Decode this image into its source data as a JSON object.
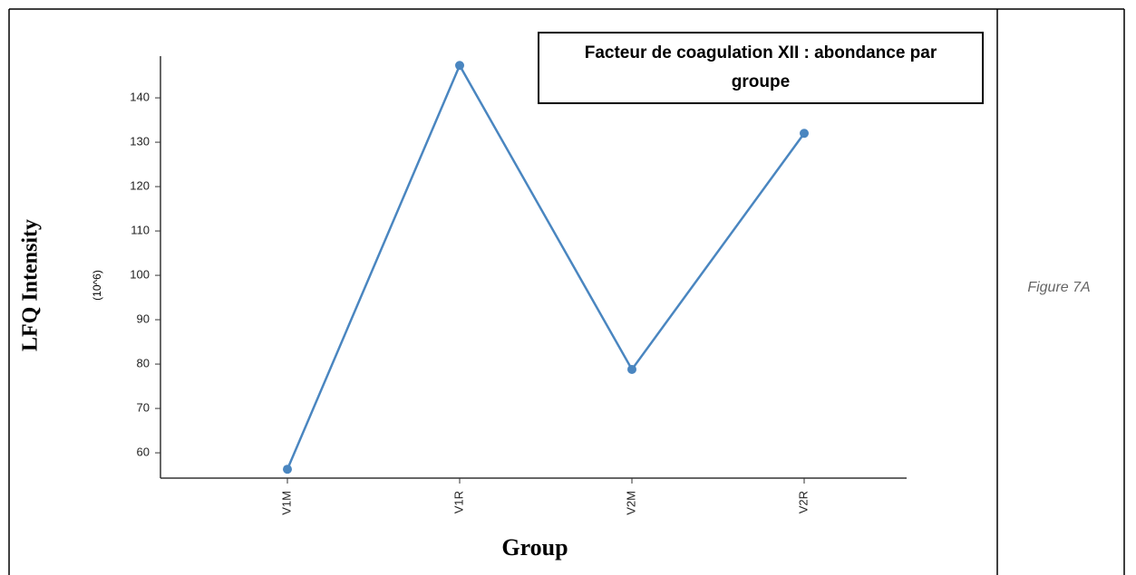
{
  "chart_data": {
    "type": "line",
    "title": "Facteur de coagulation XII : abondance par groupe",
    "ylabel": "LFQ Intensity",
    "yunit": "(10^6)",
    "xlabel": "Group",
    "categories": [
      "V1M",
      "V1R",
      "V2M",
      "V2R"
    ],
    "series": [
      {
        "name": "LFQ Intensity",
        "color": "#4a86c0",
        "values": [
          56.3,
          147.3,
          78.8,
          132.0
        ]
      }
    ],
    "ylim": [
      54.3,
      149.4
    ],
    "yticks": [
      60,
      70,
      80,
      90,
      100,
      110,
      120,
      130,
      140
    ]
  },
  "caption": "Figure 7A"
}
